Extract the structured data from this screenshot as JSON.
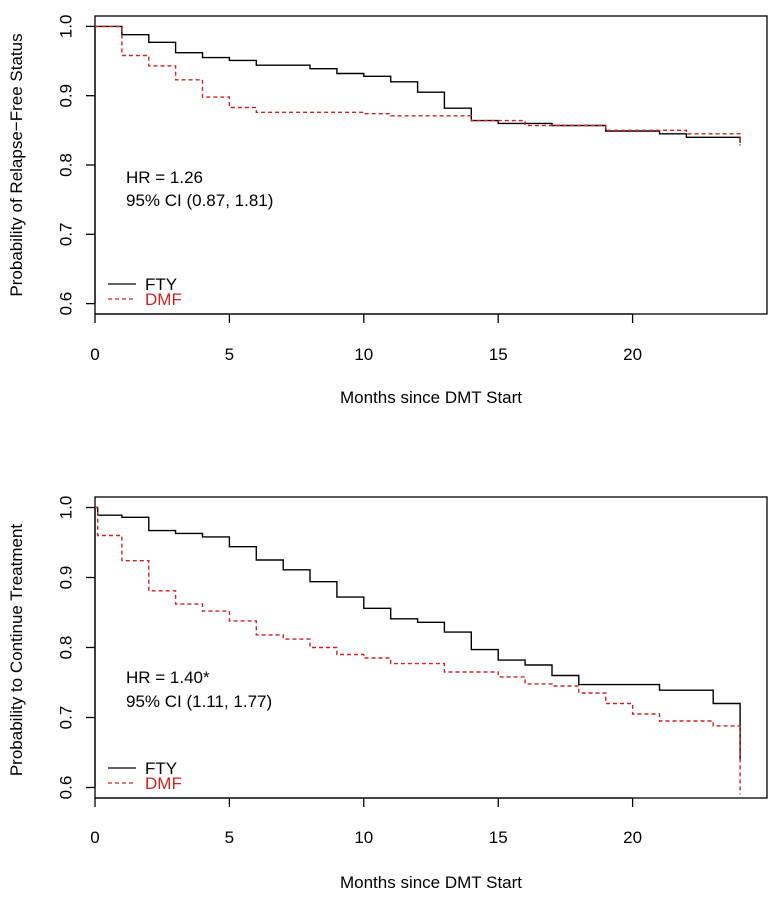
{
  "colors": {
    "FTY": "#000000",
    "DMF": "#cc2222"
  },
  "chart_data": [
    {
      "type": "line",
      "step": true,
      "xlabel": "Months since DMT Start",
      "ylabel": "Probability of Relapse−Free Status",
      "xlim": [
        0,
        25
      ],
      "ylim": [
        0.585,
        1.015
      ],
      "xticks": [
        0,
        5,
        10,
        15,
        20
      ],
      "yticks": [
        0.6,
        0.7,
        0.8,
        0.9,
        1.0
      ],
      "xtick_labels": [
        "0",
        "5",
        "10",
        "15",
        "20"
      ],
      "ytick_labels": [
        "0.6",
        "0.7",
        "0.8",
        "0.9",
        "1.0"
      ],
      "annotation": [
        "HR = 1.26",
        "95% CI (0.87, 1.81)"
      ],
      "legend": {
        "position": "bottom-left",
        "entries": [
          "FTY",
          "DMF"
        ]
      },
      "series": [
        {
          "name": "FTY",
          "style": "solid",
          "x": [
            0,
            1,
            2,
            3,
            4,
            5,
            6,
            7,
            8,
            9,
            10,
            11,
            12,
            13,
            14,
            15,
            17,
            19,
            21,
            22,
            24
          ],
          "y": [
            1.0,
            0.988,
            0.977,
            0.962,
            0.955,
            0.951,
            0.944,
            0.944,
            0.939,
            0.932,
            0.928,
            0.92,
            0.905,
            0.882,
            0.864,
            0.86,
            0.857,
            0.849,
            0.845,
            0.84,
            0.832
          ]
        },
        {
          "name": "DMF",
          "style": "dashed",
          "x": [
            0,
            1,
            2,
            3,
            4,
            5,
            6,
            10,
            11,
            14,
            16,
            19,
            22,
            24
          ],
          "y": [
            1.0,
            0.958,
            0.943,
            0.923,
            0.898,
            0.883,
            0.876,
            0.874,
            0.871,
            0.864,
            0.857,
            0.85,
            0.845,
            0.828
          ]
        }
      ]
    },
    {
      "type": "line",
      "step": true,
      "xlabel": "Months since DMT Start",
      "ylabel": "Probability to Continue Treatment",
      "xlim": [
        0,
        25
      ],
      "ylim": [
        0.585,
        1.015
      ],
      "xticks": [
        0,
        5,
        10,
        15,
        20
      ],
      "yticks": [
        0.6,
        0.7,
        0.8,
        0.9,
        1.0
      ],
      "xtick_labels": [
        "0",
        "5",
        "10",
        "15",
        "20"
      ],
      "ytick_labels": [
        "0.6",
        "0.7",
        "0.8",
        "0.9",
        "1.0"
      ],
      "annotation": [
        "HR = 1.40*",
        "95% CI (1.11, 1.77)"
      ],
      "legend": {
        "position": "bottom-left",
        "entries": [
          "FTY",
          "DMF"
        ]
      },
      "series": [
        {
          "name": "FTY",
          "style": "solid",
          "x": [
            0,
            0.1,
            1,
            2,
            3,
            4,
            5,
            6,
            7,
            8,
            9,
            10,
            11,
            12,
            13,
            14,
            15,
            16,
            17,
            18,
            20,
            21,
            23,
            24
          ],
          "y": [
            1.0,
            0.989,
            0.986,
            0.967,
            0.963,
            0.958,
            0.944,
            0.925,
            0.911,
            0.894,
            0.872,
            0.856,
            0.841,
            0.836,
            0.822,
            0.797,
            0.782,
            0.775,
            0.76,
            0.747,
            0.747,
            0.739,
            0.72,
            0.64
          ]
        },
        {
          "name": "DMF",
          "style": "dashed",
          "x": [
            0,
            0.1,
            1,
            2,
            3,
            4,
            5,
            6,
            7,
            8,
            9,
            10,
            11,
            13,
            15,
            16,
            17,
            18,
            19,
            20,
            21,
            23,
            24
          ],
          "y": [
            1.0,
            0.96,
            0.924,
            0.881,
            0.862,
            0.852,
            0.838,
            0.818,
            0.812,
            0.8,
            0.79,
            0.785,
            0.777,
            0.765,
            0.758,
            0.748,
            0.745,
            0.735,
            0.72,
            0.705,
            0.695,
            0.688,
            0.59
          ]
        }
      ]
    }
  ]
}
